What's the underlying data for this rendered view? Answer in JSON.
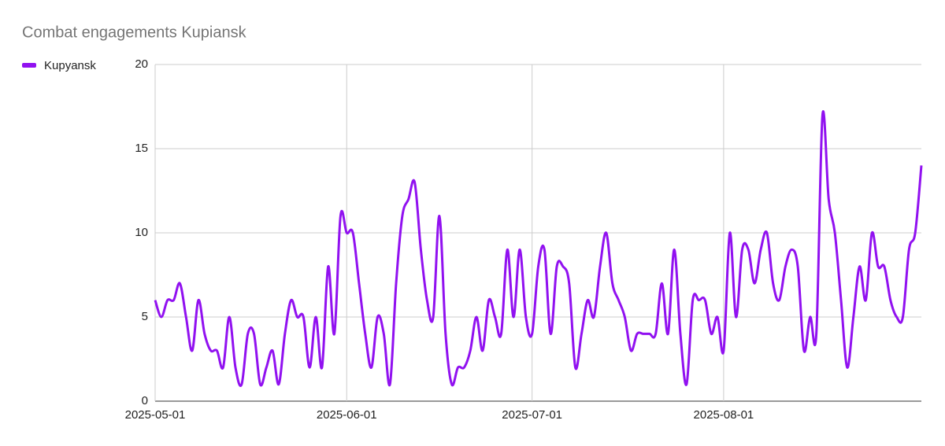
{
  "chart_data": {
    "type": "line",
    "title": "Combat engagements Kupiansk",
    "x": [
      "2025-05-01",
      "2025-05-02",
      "2025-05-03",
      "2025-05-04",
      "2025-05-05",
      "2025-05-06",
      "2025-05-07",
      "2025-05-08",
      "2025-05-09",
      "2025-05-10",
      "2025-05-11",
      "2025-05-12",
      "2025-05-13",
      "2025-05-14",
      "2025-05-15",
      "2025-05-16",
      "2025-05-17",
      "2025-05-18",
      "2025-05-19",
      "2025-05-20",
      "2025-05-21",
      "2025-05-22",
      "2025-05-23",
      "2025-05-24",
      "2025-05-25",
      "2025-05-26",
      "2025-05-27",
      "2025-05-28",
      "2025-05-29",
      "2025-05-30",
      "2025-05-31",
      "2025-06-01",
      "2025-06-02",
      "2025-06-03",
      "2025-06-04",
      "2025-06-05",
      "2025-06-06",
      "2025-06-07",
      "2025-06-08",
      "2025-06-09",
      "2025-06-10",
      "2025-06-11",
      "2025-06-12",
      "2025-06-13",
      "2025-06-14",
      "2025-06-15",
      "2025-06-16",
      "2025-06-17",
      "2025-06-18",
      "2025-06-19",
      "2025-06-20",
      "2025-06-21",
      "2025-06-22",
      "2025-06-23",
      "2025-06-24",
      "2025-06-25",
      "2025-06-26",
      "2025-06-27",
      "2025-06-28",
      "2025-06-29",
      "2025-06-30",
      "2025-07-01",
      "2025-07-02",
      "2025-07-03",
      "2025-07-04",
      "2025-07-05",
      "2025-07-06",
      "2025-07-07",
      "2025-07-08",
      "2025-07-09",
      "2025-07-10",
      "2025-07-11",
      "2025-07-12",
      "2025-07-13",
      "2025-07-14",
      "2025-07-15",
      "2025-07-16",
      "2025-07-17",
      "2025-07-18",
      "2025-07-19",
      "2025-07-20",
      "2025-07-21",
      "2025-07-22",
      "2025-07-23",
      "2025-07-24",
      "2025-07-25",
      "2025-07-26",
      "2025-07-27",
      "2025-07-28",
      "2025-07-29",
      "2025-07-30",
      "2025-07-31",
      "2025-08-01",
      "2025-08-02",
      "2025-08-03",
      "2025-08-04",
      "2025-08-05",
      "2025-08-06",
      "2025-08-07",
      "2025-08-08",
      "2025-08-09",
      "2025-08-10",
      "2025-08-11",
      "2025-08-12",
      "2025-08-13",
      "2025-08-14",
      "2025-08-15",
      "2025-08-16",
      "2025-08-17",
      "2025-08-18",
      "2025-08-19",
      "2025-08-20",
      "2025-08-21",
      "2025-08-22",
      "2025-08-23",
      "2025-08-24",
      "2025-08-25",
      "2025-08-26",
      "2025-08-27",
      "2025-08-28",
      "2025-08-29",
      "2025-08-30",
      "2025-08-31",
      "2025-09-01",
      "2025-09-02"
    ],
    "series": [
      {
        "name": "Kupyansk",
        "color": "#9111f0",
        "values": [
          6,
          5,
          6,
          6,
          7,
          5,
          3,
          6,
          4,
          3,
          3,
          2,
          5,
          2,
          1,
          4,
          4,
          1,
          2,
          3,
          1,
          4,
          6,
          5,
          5,
          2,
          5,
          2,
          8,
          4,
          11,
          10,
          10,
          7,
          4,
          2,
          5,
          4,
          1,
          7,
          11,
          12,
          13,
          9,
          6,
          5,
          11,
          4,
          1,
          2,
          2,
          3,
          5,
          3,
          6,
          5,
          4,
          9,
          5,
          9,
          5,
          4,
          8,
          9,
          4,
          8,
          8,
          7,
          2,
          4,
          6,
          5,
          8,
          10,
          7,
          6,
          5,
          3,
          4,
          4,
          4,
          4,
          7,
          4,
          9,
          4,
          1,
          6,
          6,
          6,
          4,
          5,
          3,
          10,
          5,
          9,
          9,
          7,
          9,
          10,
          7,
          6,
          8,
          9,
          8,
          3,
          5,
          4,
          17,
          12,
          10,
          6,
          2,
          5,
          8,
          6,
          10,
          8,
          8,
          6,
          5,
          5,
          9,
          10,
          14
        ]
      }
    ],
    "xlim": [
      "2025-05-01",
      "2025-09-02"
    ],
    "xticks": [
      "2025-05-01",
      "2025-06-01",
      "2025-07-01",
      "2025-08-01"
    ],
    "ylim": [
      0,
      20
    ],
    "yticks": [
      0,
      5,
      10,
      15,
      20
    ],
    "grid": true,
    "legend": "left"
  }
}
